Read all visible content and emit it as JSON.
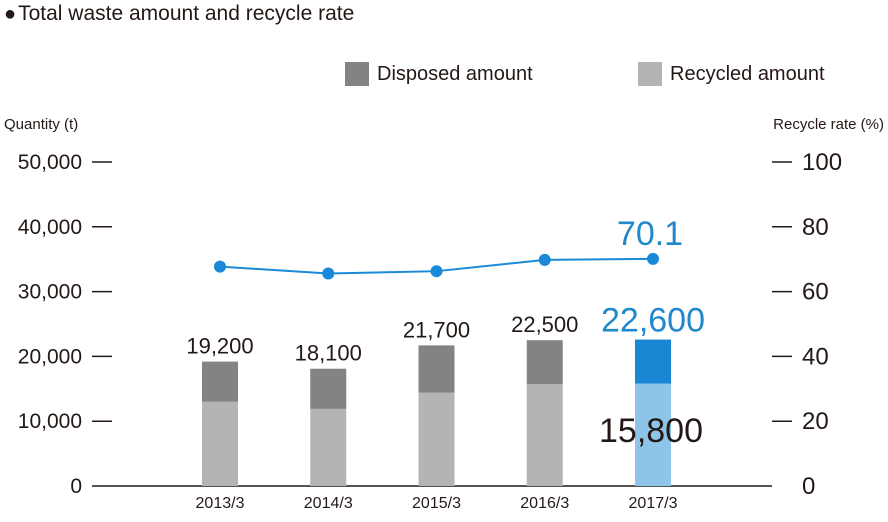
{
  "chart_data": {
    "type": "bar",
    "title": "Total waste amount and recycle rate",
    "ylabel": "Quantity (t)",
    "y2label": "Recycle rate (%)",
    "ylim": [
      0,
      50000
    ],
    "y2lim": [
      0,
      100
    ],
    "yticks": [
      "0",
      "10,000",
      "20,000",
      "30,000",
      "40,000",
      "50,000"
    ],
    "y2ticks": [
      "0",
      "20",
      "40",
      "60",
      "80",
      "100"
    ],
    "categories": [
      "2013/3",
      "2014/3",
      "2015/3",
      "2016/3",
      "2017/3"
    ],
    "series": [
      {
        "name": "Recycled amount",
        "type": "bar",
        "stack": "waste",
        "values": [
          13000,
          11900,
          14400,
          15700,
          15800
        ]
      },
      {
        "name": "Disposed amount",
        "type": "bar",
        "stack": "waste",
        "values": [
          6200,
          6200,
          7300,
          6800,
          6800
        ]
      },
      {
        "name": "",
        "type": "line",
        "axis": "right",
        "values": [
          67.7,
          65.6,
          66.3,
          69.8,
          70.1
        ]
      }
    ],
    "totals": [
      19200,
      18100,
      21700,
      22500,
      22600
    ],
    "total_labels": [
      "19,200",
      "18,100",
      "21,700",
      "22,500",
      "22,600"
    ],
    "highlight": {
      "category": "2017/3",
      "total_label": "22,600",
      "recycled_label": "15,800",
      "rate_label": "70.1"
    },
    "legend": [
      "Disposed amount",
      "Recycled amount"
    ],
    "legend_position": "top-right",
    "grid": false
  },
  "colors": {
    "disposed": "#838383",
    "recycled": "#b4b4b5",
    "disposed_highlight": "#1a87d5",
    "recycled_highlight": "#8cc5e7",
    "line": "#1a8ad8",
    "highlight_text": "#2288cc",
    "text": "#231815"
  }
}
